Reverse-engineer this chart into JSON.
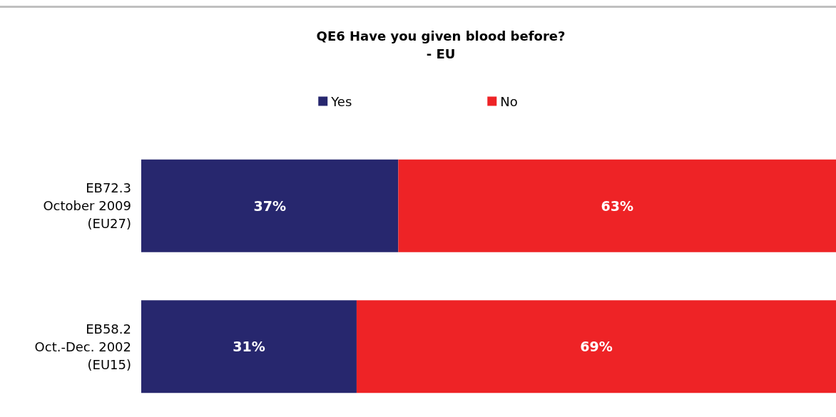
{
  "chart_data": {
    "type": "bar",
    "orientation": "horizontal",
    "stacked": true,
    "title": "QE6 Have you given blood before?\n- EU",
    "categories": [
      "EB72.3\nOctober 2009\n(EU27)",
      "EB58.2\nOct.-Dec. 2002\n(EU15)"
    ],
    "series": [
      {
        "name": "Yes",
        "color": "#27276e",
        "values": [
          37,
          31
        ],
        "value_labels": [
          "37%",
          "31%"
        ]
      },
      {
        "name": "No",
        "color": "#ee2326",
        "values": [
          63,
          69
        ],
        "value_labels": [
          "63%",
          "69%"
        ]
      }
    ],
    "legend": "top"
  }
}
